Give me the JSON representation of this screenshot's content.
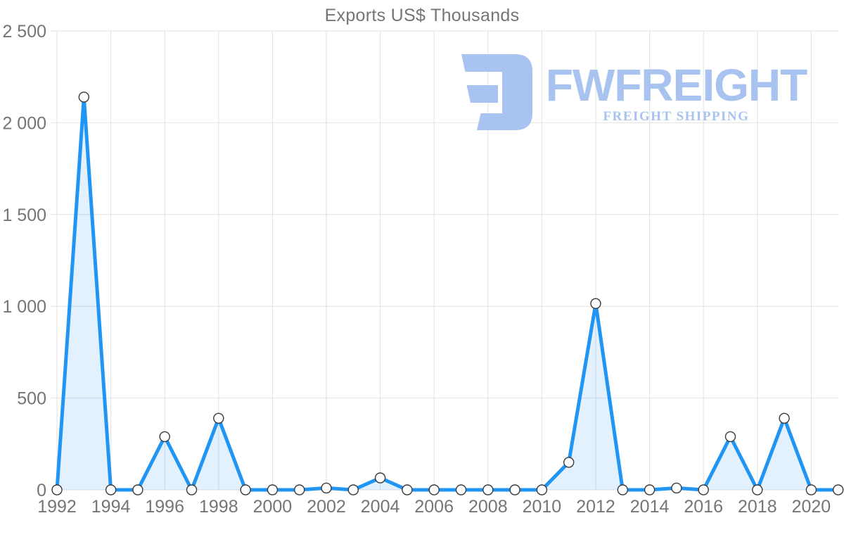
{
  "chart_data": {
    "type": "area",
    "title": "Exports US$ Thousands",
    "xlabel": "",
    "ylabel": "",
    "x": [
      1992,
      1993,
      1994,
      1995,
      1996,
      1997,
      1998,
      1999,
      2000,
      2001,
      2002,
      2003,
      2004,
      2005,
      2006,
      2007,
      2008,
      2009,
      2010,
      2011,
      2012,
      2013,
      2014,
      2015,
      2016,
      2017,
      2018,
      2019,
      2020,
      2021
    ],
    "values": [
      0,
      2140,
      0,
      0,
      290,
      0,
      390,
      0,
      0,
      0,
      10,
      0,
      65,
      0,
      0,
      0,
      0,
      0,
      0,
      150,
      1015,
      0,
      0,
      10,
      0,
      290,
      0,
      390,
      0,
      0
    ],
    "series_name": "Exports US$ Thousands",
    "ylim": [
      0,
      2500
    ],
    "xlim": [
      1992,
      2021
    ],
    "y_ticks": [
      0,
      500,
      1000,
      1500,
      2000,
      2500
    ],
    "y_tick_labels": [
      "0",
      "500",
      "1 000",
      "1 500",
      "2 000",
      "2 500"
    ],
    "x_ticks": [
      1992,
      1994,
      1996,
      1998,
      2000,
      2002,
      2004,
      2006,
      2008,
      2010,
      2012,
      2014,
      2016,
      2018,
      2020
    ],
    "grid": "on",
    "legend": "none",
    "marker": "circle"
  },
  "watermark": {
    "name": "FWFREIGHT",
    "tagline": "FREIGHT SHIPPING"
  },
  "colors": {
    "line": "#2095f3",
    "area_fill": "rgba(33,150,243,0.13)",
    "grid": "#e2e2e2",
    "tick_text": "#757575",
    "title_text": "#757575",
    "marker_fill": "#ffffff",
    "marker_stroke": "#3a3a3a",
    "logo": "#a8c3ef"
  }
}
